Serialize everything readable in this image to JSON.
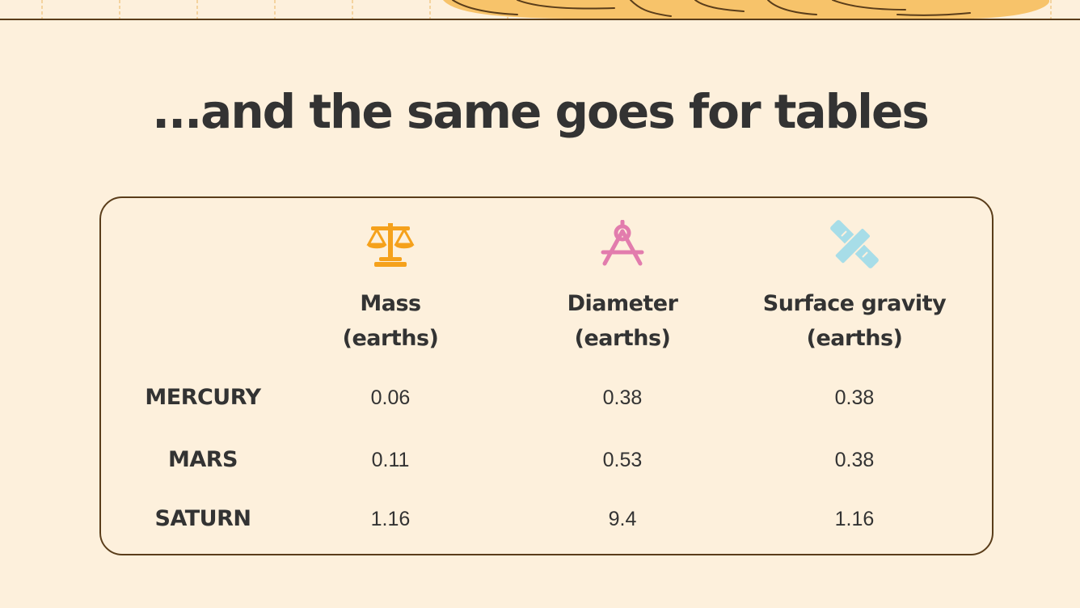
{
  "title": "...and the same goes for tables",
  "columns": [
    {
      "icon": "scales-icon",
      "line1": "Mass",
      "line2": "(earths)",
      "color": "#f5a11b"
    },
    {
      "icon": "compass-icon",
      "line1": "Diameter",
      "line2": "(earths)",
      "color": "#e27cad"
    },
    {
      "icon": "pencil-ruler-icon",
      "line1": "Surface gravity",
      "line2": "(earths)",
      "color": "#a7dde8"
    }
  ],
  "rows": [
    {
      "label": "MERCURY",
      "values": [
        "0.06",
        "0.38",
        "0.38"
      ]
    },
    {
      "label": "MARS",
      "values": [
        "0.11",
        "0.53",
        "0.38"
      ]
    },
    {
      "label": "SATURN",
      "values": [
        "1.16",
        "9.4",
        "1.16"
      ]
    }
  ],
  "colors": {
    "background": "#fdf0dc",
    "border": "#5a3d1a",
    "text": "#333333",
    "decor_fill": "#f7c36a"
  }
}
